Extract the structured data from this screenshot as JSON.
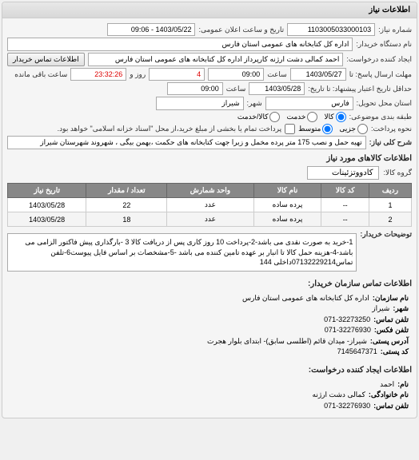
{
  "panel_title": "اطلاعات نیاز",
  "fields": {
    "req_no_label": "شماره نیاز:",
    "req_no": "1103005033000103",
    "pub_date_label": "تاریخ و ساعت اعلان عمومی:",
    "pub_date": "1403/05/22 - 09:06",
    "buyer_label": "نام دستگاه خریدار:",
    "buyer": "اداره کل کتابخانه های عمومی استان فارس",
    "requester_label": "ایجاد کننده درخواست:",
    "requester": "احمد کمالی دشت ارژنه کارپرداز اداره کل کتابخانه های عمومی استان فارس",
    "buyer_contact_btn": "اطلاعات تماس خریدار",
    "deadline_send_label": "مهلت ارسال پاسخ: تا",
    "deadline_date": "1403/05/27",
    "time_label": "ساعت",
    "deadline_time": "09:00",
    "days_label": "روز و",
    "days": "4",
    "remain_label": "ساعت باقی مانده",
    "remain": "23:32:26",
    "min_valid_label": "حداقل تاریخ اعتبار پیشنهاد: تا تاریخ:",
    "min_valid_date": "1403/05/28",
    "min_valid_time": "09:00",
    "delivery_place_label": "استان محل تحویل:",
    "province": "فارس",
    "city_label": "شهر:",
    "city": "شیراز",
    "pack_label": "طبقه بندی موضوعی:",
    "pack_opt1": "کالا",
    "pack_opt2": "خدمت",
    "pack_opt3": "کالا/خدمت",
    "pay_label": "نحوه پرداخت:",
    "pay_opt1": "جزیی",
    "pay_opt2": "متوسط",
    "pay_note": "پرداخت تمام یا بخشی از مبلغ خرید،از محل \"اسناد خزانه اسلامی\" خواهد بود.",
    "need_title_label": "شرح کلی نیاز:",
    "need_title": "تهیه حمل و نصب 175 متر پرده مخمل و زبرا جهت کتابخانه های حکمت ،بهمن بیگی ، شهروند شهرستان شیراز"
  },
  "goods_section_title": "اطلاعات کالاهای مورد نیاز",
  "goods_group_label": "گروه کالا:",
  "goods_group": "کادووتزئینات",
  "table": {
    "headers": [
      "ردیف",
      "کد کالا",
      "نام کالا",
      "واحد شمارش",
      "تعداد / مقدار",
      "تاریخ نیاز"
    ],
    "rows": [
      [
        "1",
        "--",
        "پرده ساده",
        "عدد",
        "22",
        "1403/05/28"
      ],
      [
        "2",
        "--",
        "پرده ساده",
        "عدد",
        "18",
        "1403/05/28"
      ]
    ]
  },
  "buyer_desc_label": "توضیحات خریدار:",
  "buyer_desc": "1-خرید به صورت نقدی می باشد-2-پرداخت 10 روز کاری پس از دریافت کالا 3 -بارگذاری پیش فاکتور الزامی می باشد-4-هزینه حمل کالا تا انبار بر عهده تامین کننده می باشد -5-مشخصات بر اساس فایل پیوست6-تلفن تماس07132229214داخلی 144",
  "contact_section_title": "اطلاعات تماس سازمان خریدار:",
  "contact": {
    "org_label": "نام سازمان:",
    "org": "اداره کل کتابخانه های عمومی استان فارس",
    "city_label": "شهر:",
    "city": "شیراز",
    "tel_label": "تلفن تماس:",
    "tel": "071-32273250",
    "fax_label": "تلفن فکس:",
    "fax": "071-32276930",
    "addr_label": "آدرس پستی:",
    "addr": "شیراز- میدان قائم (اطلسی سابق)- ابتدای بلوار هجرت",
    "post_label": "کد پستی:",
    "post": "7145647371"
  },
  "creator_section_title": "اطلاعات ایجاد کننده درخواست:",
  "creator": {
    "name_label": "نام:",
    "name": "احمد",
    "family_label": "نام خانوادگی:",
    "family": "کمالی دشت ارژنه",
    "tel_label": "تلفن تماس:",
    "tel": "071-32276930"
  }
}
